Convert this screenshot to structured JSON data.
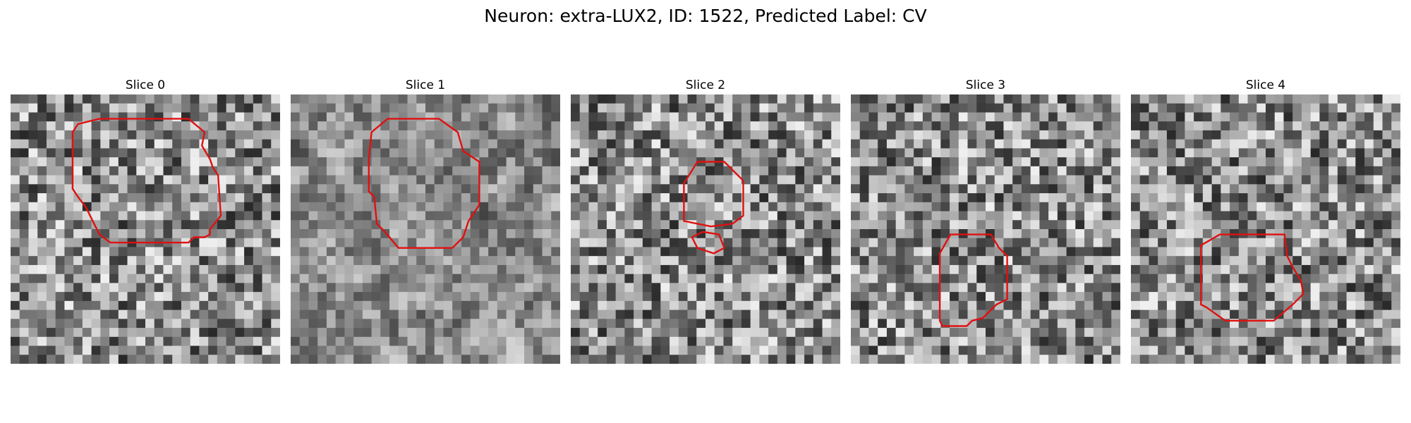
{
  "figure": {
    "title": "Neuron: extra-LUX2, ID: 1522, Predicted Label: CV",
    "outline_color": "#e01010"
  },
  "panels": [
    {
      "title": "Slice 0",
      "contours": [
        [
          [
            0.25,
            0.11
          ],
          [
            0.33,
            0.09
          ],
          [
            0.66,
            0.09
          ],
          [
            0.72,
            0.14
          ],
          [
            0.71,
            0.19
          ],
          [
            0.74,
            0.24
          ],
          [
            0.75,
            0.27
          ],
          [
            0.77,
            0.3
          ],
          [
            0.78,
            0.45
          ],
          [
            0.74,
            0.5
          ],
          [
            0.74,
            0.52
          ],
          [
            0.72,
            0.53
          ],
          [
            0.68,
            0.53
          ],
          [
            0.66,
            0.55
          ],
          [
            0.37,
            0.55
          ],
          [
            0.33,
            0.52
          ],
          [
            0.31,
            0.48
          ],
          [
            0.28,
            0.42
          ],
          [
            0.25,
            0.38
          ],
          [
            0.23,
            0.35
          ],
          [
            0.23,
            0.14
          ]
        ]
      ]
    },
    {
      "title": "Slice 1",
      "contours": [
        [
          [
            0.3,
            0.14
          ],
          [
            0.36,
            0.09
          ],
          [
            0.55,
            0.09
          ],
          [
            0.62,
            0.14
          ],
          [
            0.64,
            0.21
          ],
          [
            0.7,
            0.25
          ],
          [
            0.7,
            0.41
          ],
          [
            0.66,
            0.47
          ],
          [
            0.64,
            0.53
          ],
          [
            0.6,
            0.57
          ],
          [
            0.4,
            0.57
          ],
          [
            0.35,
            0.51
          ],
          [
            0.32,
            0.48
          ],
          [
            0.31,
            0.38
          ],
          [
            0.29,
            0.36
          ],
          [
            0.29,
            0.24
          ]
        ]
      ]
    },
    {
      "title": "Slice 2",
      "contours": [
        [
          [
            0.42,
            0.33
          ],
          [
            0.47,
            0.25
          ],
          [
            0.57,
            0.25
          ],
          [
            0.64,
            0.32
          ],
          [
            0.64,
            0.45
          ],
          [
            0.6,
            0.48
          ],
          [
            0.52,
            0.49
          ],
          [
            0.42,
            0.47
          ]
        ],
        [
          [
            0.45,
            0.53
          ],
          [
            0.49,
            0.51
          ],
          [
            0.55,
            0.52
          ],
          [
            0.57,
            0.57
          ],
          [
            0.53,
            0.59
          ],
          [
            0.47,
            0.57
          ]
        ]
      ]
    },
    {
      "title": "Slice 3",
      "contours": [
        [
          [
            0.33,
            0.59
          ],
          [
            0.37,
            0.52
          ],
          [
            0.52,
            0.52
          ],
          [
            0.55,
            0.57
          ],
          [
            0.58,
            0.6
          ],
          [
            0.58,
            0.76
          ],
          [
            0.54,
            0.78
          ],
          [
            0.52,
            0.8
          ],
          [
            0.49,
            0.83
          ],
          [
            0.45,
            0.84
          ],
          [
            0.43,
            0.86
          ],
          [
            0.34,
            0.86
          ],
          [
            0.33,
            0.84
          ]
        ]
      ]
    },
    {
      "title": "Slice 4",
      "contours": [
        [
          [
            0.26,
            0.56
          ],
          [
            0.33,
            0.52
          ],
          [
            0.57,
            0.52
          ],
          [
            0.58,
            0.6
          ],
          [
            0.6,
            0.64
          ],
          [
            0.63,
            0.69
          ],
          [
            0.64,
            0.74
          ],
          [
            0.6,
            0.78
          ],
          [
            0.53,
            0.84
          ],
          [
            0.35,
            0.84
          ],
          [
            0.28,
            0.79
          ],
          [
            0.26,
            0.78
          ]
        ]
      ]
    }
  ]
}
